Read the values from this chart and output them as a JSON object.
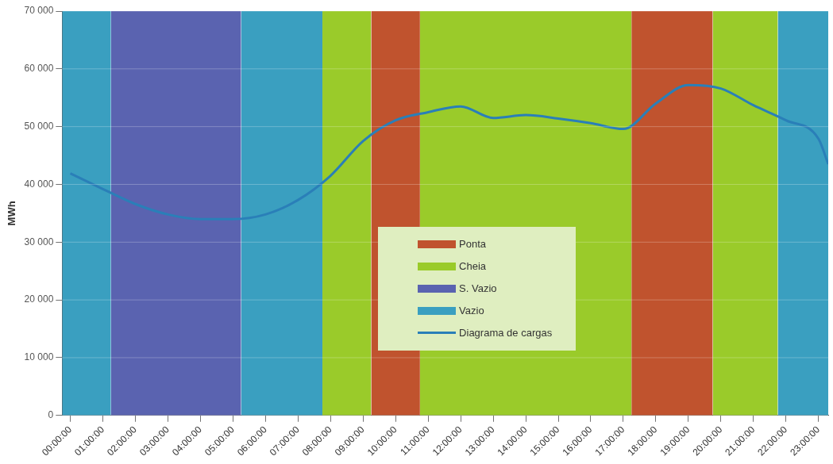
{
  "chart_data": {
    "type": "line",
    "ylabel": "MWh",
    "x": [
      0,
      1,
      2,
      3,
      4,
      5,
      6,
      7,
      8,
      9,
      10,
      11,
      12,
      13,
      14,
      15,
      16,
      17,
      18,
      19,
      20,
      21,
      22,
      23,
      23.3
    ],
    "series": [
      {
        "name": "Ponta",
        "type": "area",
        "color": "#c0532e",
        "x": [
          9.25,
          10.75,
          14,
          17.25,
          19.75
        ],
        "values": [
          70000,
          70000,
          null,
          70000,
          70000
        ]
      },
      {
        "name": "Cheia",
        "type": "area",
        "color": "#9acb2a",
        "x": [
          7.75,
          9.25,
          10,
          10.75,
          17.25,
          18,
          19.75,
          21.75
        ],
        "values": [
          70000,
          70000,
          null,
          70000,
          70000,
          null,
          70000,
          70000
        ]
      },
      {
        "name": "S. Vazio",
        "type": "area",
        "color": "#5a63b0",
        "x": [
          1.25,
          5.25
        ],
        "values": [
          70000,
          70000
        ]
      },
      {
        "name": "Vazio",
        "type": "area",
        "color": "#3a9fc0",
        "x": [
          -0.25,
          1.25,
          3,
          5.25,
          7.75,
          15,
          21.75,
          23.3
        ],
        "values": [
          70000,
          70000,
          null,
          70000,
          70000,
          null,
          70000,
          70000
        ]
      },
      {
        "name": "Diagrama de cargas",
        "color": "#2a7fb8",
        "values": [
          41900,
          39200,
          36600,
          34800,
          34000,
          34000,
          34800,
          37300,
          41500,
          47500,
          51100,
          52500,
          53500,
          51500,
          52000,
          51400,
          50600,
          49600,
          54000,
          57200,
          56600,
          53700,
          51100,
          47900,
          43500
        ]
      }
    ],
    "xlim": [
      -0.25,
      23.3
    ],
    "xticks": [
      {
        "value": 0,
        "label": "00:00:00"
      },
      {
        "value": 1,
        "label": "01:00:00"
      },
      {
        "value": 2,
        "label": "02:00:00"
      },
      {
        "value": 3,
        "label": "03:00:00"
      },
      {
        "value": 4,
        "label": "04:00:00"
      },
      {
        "value": 5,
        "label": "05:00:00"
      },
      {
        "value": 6,
        "label": "06:00:00"
      },
      {
        "value": 7,
        "label": "07:00:00"
      },
      {
        "value": 8,
        "label": "08:00:00"
      },
      {
        "value": 9,
        "label": "09:00:00"
      },
      {
        "value": 10,
        "label": "10:00:00"
      },
      {
        "value": 11,
        "label": "11:00:00"
      },
      {
        "value": 12,
        "label": "12:00:00"
      },
      {
        "value": 13,
        "label": "13:00:00"
      },
      {
        "value": 14,
        "label": "14:00:00"
      },
      {
        "value": 15,
        "label": "15:00:00"
      },
      {
        "value": 16,
        "label": "16:00:00"
      },
      {
        "value": 17,
        "label": "17:00:00"
      },
      {
        "value": 18,
        "label": "18:00:00"
      },
      {
        "value": 19,
        "label": "19:00:00"
      },
      {
        "value": 20,
        "label": "20:00:00"
      },
      {
        "value": 21,
        "label": "21:00:00"
      },
      {
        "value": 22,
        "label": "22:00:00"
      },
      {
        "value": 23,
        "label": "23:00:00"
      }
    ],
    "ylim": [
      0,
      70000
    ],
    "yticks": [
      0,
      {
        "value": 10000,
        "label": "10 000"
      },
      {
        "value": 20000,
        "label": "20 000"
      },
      {
        "value": 30000,
        "label": "30 000"
      },
      {
        "value": 40000,
        "label": "40 000"
      },
      {
        "value": 50000,
        "label": "50 000"
      },
      {
        "value": 60000,
        "label": "60 000"
      },
      {
        "value": 70000,
        "label": "70 000"
      }
    ],
    "grid": "y",
    "legend": "center",
    "marker": "none",
    "line_style": "solid"
  }
}
